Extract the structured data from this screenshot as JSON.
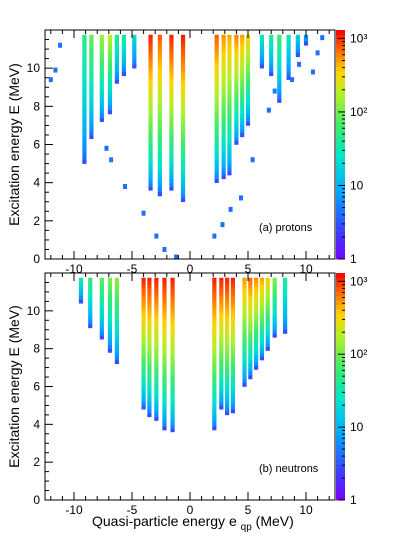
{
  "chart_data": [
    {
      "type": "heatmap",
      "panel_label": "(a) protons",
      "ylabel": "Excitation energy E (MeV)",
      "xlabel": "",
      "xlim": [
        -12.5,
        12.5
      ],
      "ylim": [
        0,
        12
      ],
      "xticks": [
        -10,
        -5,
        0,
        5,
        10
      ],
      "yticks": [
        0,
        2,
        4,
        6,
        8,
        10
      ],
      "colorbar": {
        "scale": "log",
        "range": [
          1,
          1300
        ],
        "ticks": [
          "1",
          "10",
          "10²",
          "10³"
        ]
      },
      "columns": [
        {
          "x": -9.1,
          "ymin": 5.0,
          "level": 0.55
        },
        {
          "x": -8.5,
          "ymin": 6.3,
          "level": 0.65
        },
        {
          "x": -7.6,
          "ymin": 7.2,
          "level": 0.72
        },
        {
          "x": -6.9,
          "ymin": 7.6,
          "level": 0.76
        },
        {
          "x": -6.3,
          "ymin": 9.2,
          "level": 0.58
        },
        {
          "x": -5.7,
          "ymin": 9.6,
          "level": 0.55
        },
        {
          "x": -4.8,
          "ymin": 10.0,
          "level": 0.46
        },
        {
          "x": -3.4,
          "ymin": 3.6,
          "level": 1.0
        },
        {
          "x": -2.6,
          "ymin": 3.3,
          "level": 0.95
        },
        {
          "x": -1.6,
          "ymin": 3.6,
          "level": 1.0
        },
        {
          "x": -0.6,
          "ymin": 3.0,
          "level": 1.0
        },
        {
          "x": 2.3,
          "ymin": 4.0,
          "level": 0.95
        },
        {
          "x": 2.9,
          "ymin": 4.2,
          "level": 0.9
        },
        {
          "x": 3.4,
          "ymin": 4.4,
          "level": 0.88
        },
        {
          "x": 4.0,
          "ymin": 6.0,
          "level": 0.92
        },
        {
          "x": 4.5,
          "ymin": 6.4,
          "level": 0.9
        },
        {
          "x": 5.0,
          "ymin": 7.0,
          "level": 0.85
        },
        {
          "x": 6.2,
          "ymin": 10.0,
          "level": 0.5
        },
        {
          "x": 7.0,
          "ymin": 9.6,
          "level": 0.55
        },
        {
          "x": 7.7,
          "ymin": 8.2,
          "level": 0.6
        },
        {
          "x": 8.5,
          "ymin": 9.4,
          "level": 0.5
        },
        {
          "x": 9.3,
          "ymin": 10.6,
          "level": 0.45
        },
        {
          "x": 10.0,
          "ymin": 11.2,
          "level": 0.4
        }
      ],
      "points": [
        {
          "x": -11.2,
          "y": 11.2,
          "level": 0.2
        },
        {
          "x": -11.6,
          "y": 9.9,
          "level": 0.2
        },
        {
          "x": -12.0,
          "y": 9.4,
          "level": 0.2
        },
        {
          "x": -7.2,
          "y": 5.8,
          "level": 0.2
        },
        {
          "x": -6.8,
          "y": 5.2,
          "level": 0.22
        },
        {
          "x": -5.6,
          "y": 3.8,
          "level": 0.2
        },
        {
          "x": -4.0,
          "y": 2.4,
          "level": 0.2
        },
        {
          "x": -2.9,
          "y": 1.2,
          "level": 0.2
        },
        {
          "x": -2.2,
          "y": 0.5,
          "level": 0.2
        },
        {
          "x": -1.2,
          "y": 0.1,
          "level": 0.2
        },
        {
          "x": 2.1,
          "y": 1.2,
          "level": 0.2
        },
        {
          "x": 2.8,
          "y": 1.8,
          "level": 0.2
        },
        {
          "x": 3.5,
          "y": 2.6,
          "level": 0.2
        },
        {
          "x": 4.4,
          "y": 3.2,
          "level": 0.2
        },
        {
          "x": 5.4,
          "y": 5.2,
          "level": 0.2
        },
        {
          "x": 6.8,
          "y": 7.8,
          "level": 0.2
        },
        {
          "x": 7.3,
          "y": 8.8,
          "level": 0.22
        },
        {
          "x": 8.8,
          "y": 9.4,
          "level": 0.2
        },
        {
          "x": 9.4,
          "y": 10.2,
          "level": 0.2
        },
        {
          "x": 10.6,
          "y": 9.8,
          "level": 0.2
        },
        {
          "x": 11.0,
          "y": 10.8,
          "level": 0.2
        },
        {
          "x": 11.4,
          "y": 11.6,
          "level": 0.2
        }
      ]
    },
    {
      "type": "heatmap",
      "panel_label": "(b) neutrons",
      "ylabel": "Excitation energy E (MeV)",
      "xlabel": "Quasi-particle energy e (MeV)",
      "xlabel_subscript": "qp",
      "xlim": [
        -12.5,
        12.5
      ],
      "ylim": [
        0,
        12
      ],
      "xticks": [
        -10,
        -5,
        0,
        5,
        10
      ],
      "yticks": [
        0,
        2,
        4,
        6,
        8,
        10
      ],
      "colorbar": {
        "scale": "log",
        "range": [
          1,
          1300
        ],
        "ticks": [
          "1",
          "10",
          "10²",
          "10³"
        ]
      },
      "columns": [
        {
          "x": -9.4,
          "ymin": 10.4,
          "level": 0.55
        },
        {
          "x": -8.6,
          "ymin": 9.1,
          "level": 0.6
        },
        {
          "x": -7.6,
          "ymin": 8.5,
          "level": 0.65
        },
        {
          "x": -6.9,
          "ymin": 7.8,
          "level": 0.68
        },
        {
          "x": -6.3,
          "ymin": 7.2,
          "level": 0.7
        },
        {
          "x": -4.0,
          "ymin": 4.8,
          "level": 1.0
        },
        {
          "x": -3.5,
          "ymin": 4.4,
          "level": 1.0
        },
        {
          "x": -2.9,
          "ymin": 4.2,
          "level": 1.0
        },
        {
          "x": -2.2,
          "ymin": 3.7,
          "level": 1.0
        },
        {
          "x": -1.5,
          "ymin": 3.6,
          "level": 1.0
        },
        {
          "x": 2.1,
          "ymin": 3.7,
          "level": 1.0
        },
        {
          "x": 2.7,
          "ymin": 4.8,
          "level": 1.0
        },
        {
          "x": 3.2,
          "ymin": 4.5,
          "level": 1.0
        },
        {
          "x": 3.7,
          "ymin": 4.6,
          "level": 1.0
        },
        {
          "x": 4.7,
          "ymin": 6.0,
          "level": 0.9
        },
        {
          "x": 5.2,
          "ymin": 6.4,
          "level": 0.95
        },
        {
          "x": 5.7,
          "ymin": 6.9,
          "level": 0.92
        },
        {
          "x": 6.2,
          "ymin": 7.4,
          "level": 0.9
        },
        {
          "x": 6.7,
          "ymin": 7.9,
          "level": 0.85
        },
        {
          "x": 7.3,
          "ymin": 8.6,
          "level": 0.7
        },
        {
          "x": 8.2,
          "ymin": 8.8,
          "level": 0.55
        }
      ],
      "points": []
    }
  ]
}
